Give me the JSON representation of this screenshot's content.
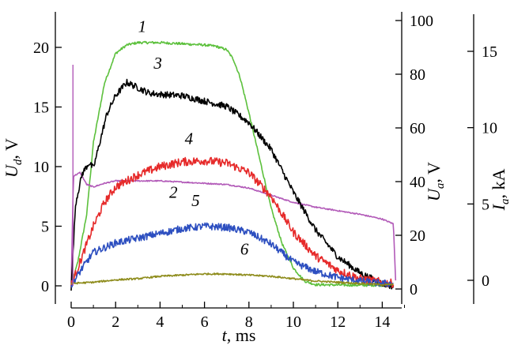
{
  "chart_data": {
    "type": "line",
    "xlabel": "t, ms",
    "x_ticks": [
      0,
      2,
      4,
      6,
      8,
      10,
      12,
      14
    ],
    "xlim": [
      -0.5,
      15
    ],
    "axes": [
      {
        "id": "Ud",
        "label_main": "U",
        "label_sub": "d",
        "label_unit": ", V",
        "ticks": [
          0,
          5,
          10,
          15,
          20
        ],
        "range": [
          -1,
          23.5
        ]
      },
      {
        "id": "Ua",
        "label_main": "U",
        "label_sub": "a",
        "label_unit": ", V",
        "ticks": [
          0,
          20,
          40,
          60,
          80,
          100
        ],
        "range": [
          -4.56,
          102.8
        ]
      },
      {
        "id": "Ia",
        "label_main": "I",
        "label_sub": "a",
        "label_unit": ", kA",
        "ticks": [
          0,
          5,
          10,
          15
        ],
        "range": [
          -1.05,
          17.9
        ]
      }
    ],
    "series": [
      {
        "name": "1",
        "axis": "Ud",
        "color": "#5cc03c",
        "noise": 0.1,
        "label_pos": [
          3.2,
          21.3
        ],
        "points": [
          [
            0,
            0
          ],
          [
            0.3,
            2
          ],
          [
            0.7,
            6
          ],
          [
            1.0,
            12
          ],
          [
            1.5,
            17
          ],
          [
            2.0,
            19.5
          ],
          [
            2.5,
            20.2
          ],
          [
            3.0,
            20.4
          ],
          [
            4.0,
            20.4
          ],
          [
            5.0,
            20.3
          ],
          [
            6.0,
            20.2
          ],
          [
            6.5,
            20.1
          ],
          [
            7.0,
            19.8
          ],
          [
            7.3,
            19.0
          ],
          [
            7.6,
            17.5
          ],
          [
            8.0,
            14.5
          ],
          [
            8.5,
            10.5
          ],
          [
            9.0,
            6.5
          ],
          [
            9.5,
            3.5
          ],
          [
            10.0,
            1.5
          ],
          [
            10.5,
            0.4
          ],
          [
            11.0,
            0.1
          ],
          [
            13.0,
            0.05
          ],
          [
            14.5,
            0.05
          ]
        ]
      },
      {
        "name": "2",
        "axis": "Ud",
        "color": "#b25ab8",
        "noise": 0.05,
        "label_pos": [
          4.6,
          7.4
        ],
        "points": [
          [
            0,
            0
          ],
          [
            0.1,
            9.2
          ],
          [
            0.4,
            9.5
          ],
          [
            0.7,
            8.5
          ],
          [
            1.0,
            8.3
          ],
          [
            1.5,
            8.6
          ],
          [
            2.0,
            8.8
          ],
          [
            3.0,
            8.8
          ],
          [
            4.0,
            8.8
          ],
          [
            5.0,
            8.7
          ],
          [
            6.0,
            8.6
          ],
          [
            7.0,
            8.5
          ],
          [
            8.0,
            8.2
          ],
          [
            9.0,
            7.6
          ],
          [
            10.0,
            7.0
          ],
          [
            11.0,
            6.6
          ],
          [
            12.0,
            6.3
          ],
          [
            13.0,
            6.0
          ],
          [
            14.0,
            5.6
          ],
          [
            14.5,
            5.2
          ],
          [
            14.6,
            0.5
          ]
        ]
      },
      {
        "name": "3",
        "axis": "Ua",
        "color": "#000000",
        "noise": 1.2,
        "label_pos": [
          3.9,
          82
        ],
        "points": [
          [
            0,
            0
          ],
          [
            0.2,
            32
          ],
          [
            0.5,
            43
          ],
          [
            0.8,
            47
          ],
          [
            1.0,
            45
          ],
          [
            1.3,
            55
          ],
          [
            1.6,
            65
          ],
          [
            2.0,
            72
          ],
          [
            2.5,
            77
          ],
          [
            3.0,
            75
          ],
          [
            3.5,
            73
          ],
          [
            4.0,
            72.5
          ],
          [
            5.0,
            72
          ],
          [
            6.0,
            70
          ],
          [
            7.0,
            68
          ],
          [
            8.0,
            62
          ],
          [
            9.0,
            52
          ],
          [
            10.0,
            36
          ],
          [
            11.0,
            22
          ],
          [
            12.0,
            12
          ],
          [
            13.0,
            6
          ],
          [
            14.0,
            2
          ],
          [
            14.5,
            1
          ]
        ]
      },
      {
        "name": "4",
        "axis": "Ud",
        "color": "#e62a2a",
        "noise": 0.35,
        "label_pos": [
          5.3,
          11.9
        ],
        "points": [
          [
            0,
            0
          ],
          [
            0.5,
            2.5
          ],
          [
            1.0,
            5
          ],
          [
            1.5,
            7
          ],
          [
            2.0,
            8.3
          ],
          [
            3.0,
            9.3
          ],
          [
            4.0,
            10.0
          ],
          [
            5.0,
            10.4
          ],
          [
            6.0,
            10.5
          ],
          [
            7.0,
            10.3
          ],
          [
            8.0,
            9.5
          ],
          [
            9.0,
            7.5
          ],
          [
            10.0,
            4.5
          ],
          [
            11.0,
            2.5
          ],
          [
            12.0,
            1.3
          ],
          [
            13.0,
            0.6
          ],
          [
            14.0,
            0.3
          ],
          [
            14.5,
            0.2
          ]
        ]
      },
      {
        "name": "5",
        "axis": "Ud",
        "color": "#2d4fc0",
        "noise": 0.3,
        "label_pos": [
          5.6,
          6.7
        ],
        "points": [
          [
            0,
            0
          ],
          [
            0.5,
            1.5
          ],
          [
            1.0,
            2.8
          ],
          [
            2.0,
            3.6
          ],
          [
            3.0,
            4.0
          ],
          [
            4.0,
            4.4
          ],
          [
            5.0,
            4.8
          ],
          [
            6.0,
            5.0
          ],
          [
            7.0,
            4.9
          ],
          [
            8.0,
            4.5
          ],
          [
            9.0,
            3.5
          ],
          [
            10.0,
            2.0
          ],
          [
            11.0,
            1.2
          ],
          [
            12.0,
            0.7
          ],
          [
            13.0,
            0.4
          ],
          [
            14.0,
            0.2
          ],
          [
            14.5,
            0.2
          ]
        ]
      },
      {
        "name": "6",
        "axis": "Ud",
        "color": "#8e8c1c",
        "noise": 0.07,
        "label_pos": [
          7.8,
          2.6
        ],
        "points": [
          [
            0,
            0.2
          ],
          [
            1.0,
            0.3
          ],
          [
            2.0,
            0.5
          ],
          [
            3.0,
            0.6
          ],
          [
            4.0,
            0.8
          ],
          [
            5.0,
            0.9
          ],
          [
            6.0,
            1.0
          ],
          [
            7.0,
            1.0
          ],
          [
            8.0,
            0.9
          ],
          [
            9.0,
            0.8
          ],
          [
            10.0,
            0.6
          ],
          [
            11.0,
            0.4
          ],
          [
            12.0,
            0.3
          ],
          [
            13.0,
            0.2
          ],
          [
            14.0,
            0.1
          ],
          [
            14.5,
            0.1
          ]
        ]
      }
    ]
  }
}
